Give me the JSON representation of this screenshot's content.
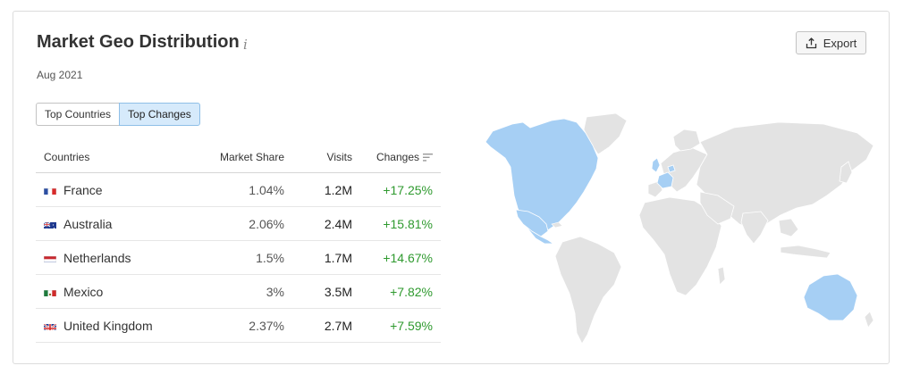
{
  "header": {
    "title": "Market Geo Distribution",
    "info_glyph": "i",
    "date": "Aug 2021",
    "export_label": "Export"
  },
  "tabs": [
    {
      "label": "Top Countries",
      "active": false
    },
    {
      "label": "Top Changes",
      "active": true
    }
  ],
  "table": {
    "columns": [
      "Countries",
      "Market Share",
      "Visits",
      "Changes"
    ],
    "rows": [
      {
        "country": "France",
        "flag": "france-flag",
        "share": "1.04%",
        "visits": "1.2M",
        "change": "+17.25%"
      },
      {
        "country": "Australia",
        "flag": "australia-flag",
        "share": "2.06%",
        "visits": "2.4M",
        "change": "+15.81%"
      },
      {
        "country": "Netherlands",
        "flag": "netherlands-flag",
        "share": "1.5%",
        "visits": "1.7M",
        "change": "+14.67%"
      },
      {
        "country": "Mexico",
        "flag": "mexico-flag",
        "share": "3%",
        "visits": "3.5M",
        "change": "+7.82%"
      },
      {
        "country": "United Kingdom",
        "flag": "uk-flag",
        "share": "2.37%",
        "visits": "2.7M",
        "change": "+7.59%"
      }
    ]
  },
  "colors": {
    "positive": "#2f9a2f",
    "highlight": "#a6cff4",
    "land": "#e3e3e3",
    "tab_active_bg": "#d6eafb"
  },
  "map": {
    "highlighted_regions": [
      "North America",
      "Europe (France, Netherlands, United Kingdom)",
      "Australia"
    ]
  }
}
